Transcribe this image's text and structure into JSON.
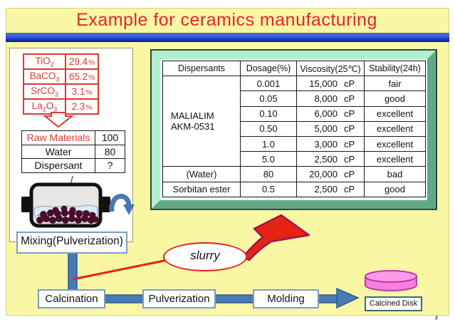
{
  "slide": {
    "title": "Example for ceramics manufacturing"
  },
  "composition_table": {
    "rows": [
      {
        "formula": [
          {
            "t": "TiO"
          },
          {
            "t": "2",
            "sub": true
          }
        ],
        "value": "29.4",
        "unit": "%"
      },
      {
        "formula": [
          {
            "t": "BaCO"
          },
          {
            "t": "3",
            "sub": true
          }
        ],
        "value": "65.2",
        "unit": "%"
      },
      {
        "formula": [
          {
            "t": "SrCO"
          },
          {
            "t": "3",
            "sub": true
          }
        ],
        "value": "3.1",
        "unit": "%"
      },
      {
        "formula": [
          {
            "t": "La"
          },
          {
            "t": "2",
            "sub": true
          },
          {
            "t": "O"
          },
          {
            "t": "3",
            "sub": true
          }
        ],
        "value": "2.3",
        "unit": "%"
      }
    ]
  },
  "recipe_table": {
    "rows": [
      {
        "label": "Raw Materials",
        "value": "100"
      },
      {
        "label": "Water",
        "value": "80"
      },
      {
        "label": "Dispersant",
        "value": "?"
      }
    ]
  },
  "mixing_label": "Mixing(Pulverization)",
  "dispersant_table": {
    "headers": [
      "Dispersants",
      "Dosage(%)",
      "Viscosity(25℃)",
      "Stability(24h)"
    ],
    "group": {
      "line1": "MALIALIM",
      "line2": "AKM-0531"
    },
    "rows": [
      {
        "dosage": "0.001",
        "viscosity": "15,000",
        "unit": "cP",
        "stability": "fair"
      },
      {
        "dosage": "0.05",
        "viscosity": "8,000",
        "unit": "cP",
        "stability": "good"
      },
      {
        "dosage": "0.10",
        "viscosity": "6,000",
        "unit": "cP",
        "stability": "excellent"
      },
      {
        "dosage": "0.50",
        "viscosity": "5,000",
        "unit": "cP",
        "stability": "excellent"
      },
      {
        "dosage": "1.0",
        "viscosity": "3,000",
        "unit": "cP",
        "stability": "excellent"
      },
      {
        "dosage": "5.0",
        "viscosity": "2,500",
        "unit": "cP",
        "stability": "excellent"
      },
      {
        "dispersant": "(Water)",
        "dosage": "80",
        "viscosity": "20,000",
        "unit": "cP",
        "stability": "bad"
      },
      {
        "dispersant": "Sorbitan ester",
        "dosage": "0.5",
        "viscosity": "2,500",
        "unit": "cP",
        "stability": "good"
      }
    ]
  },
  "slurry_label": "slurry",
  "flow": {
    "steps": [
      "Calcination",
      "Pulverization",
      "Molding"
    ],
    "result": "Calcined Disk"
  },
  "colors": {
    "accent_red": "#e42313",
    "connector_blue": "#4a7ab5",
    "panel_green_light": "#b2efcf",
    "panel_green_dark": "#63a886",
    "slide_yellow": "#f9f6a4",
    "disk_pink": "#fa96e6"
  }
}
